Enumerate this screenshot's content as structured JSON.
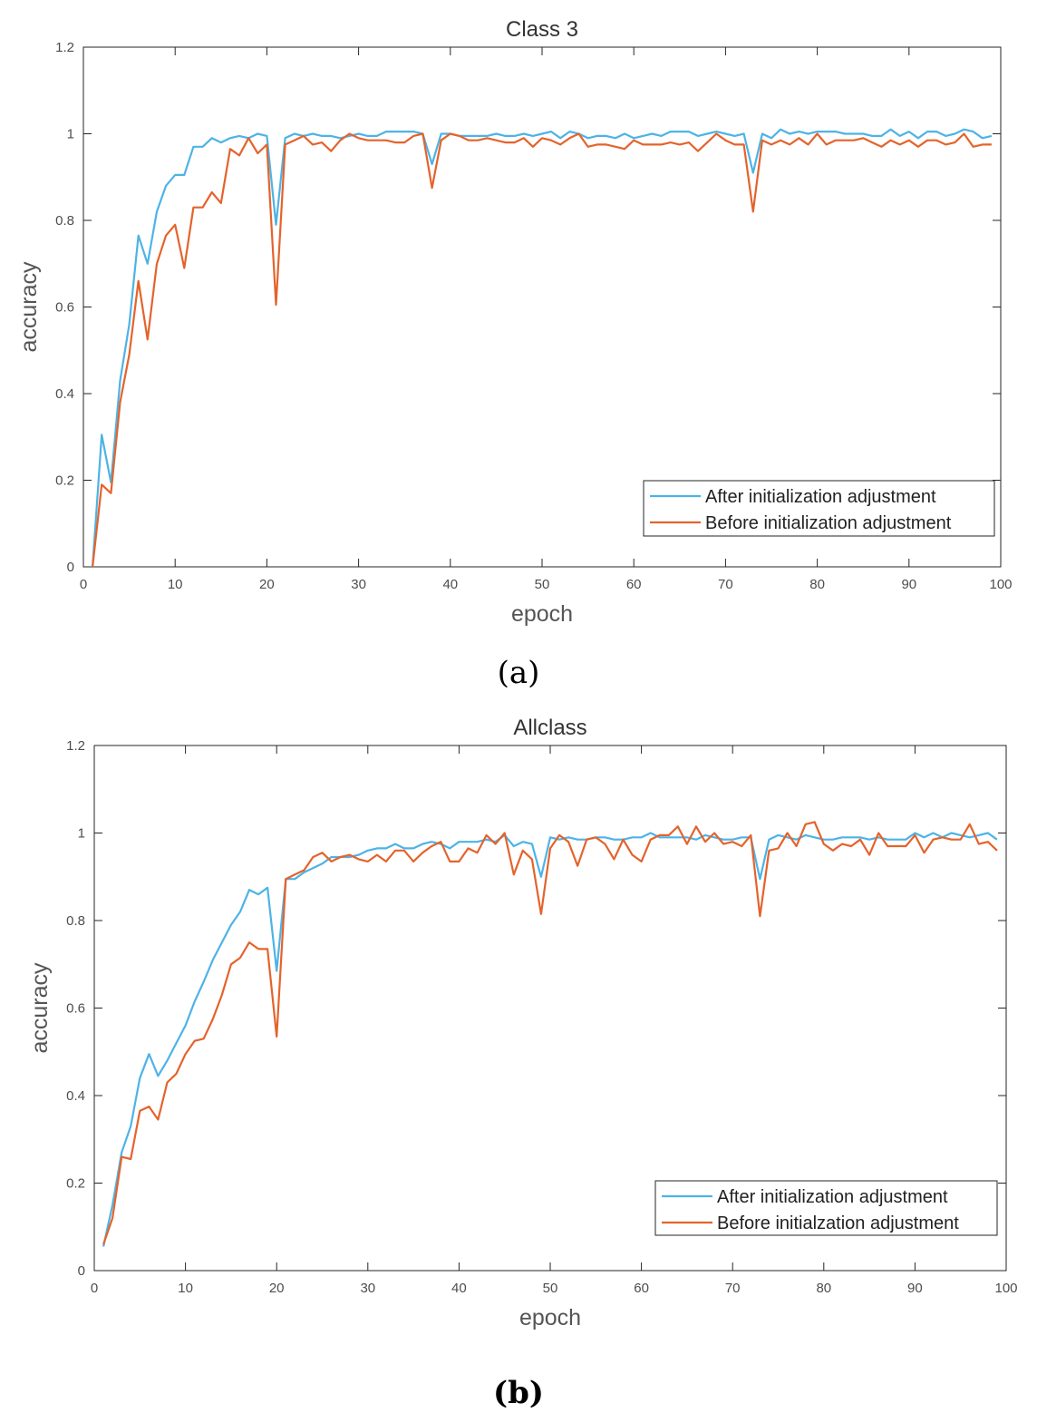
{
  "figure": {
    "caption_a": "(a)",
    "caption_b": "(b)"
  },
  "chart_data": [
    {
      "type": "line",
      "title": "Class 3",
      "xlabel": "epoch",
      "ylabel": "accuracy",
      "xlim": [
        0,
        100
      ],
      "ylim": [
        0,
        1.2
      ],
      "xticks": [
        "0",
        "10",
        "20",
        "30",
        "40",
        "50",
        "60",
        "70",
        "80",
        "90",
        "100"
      ],
      "yticks": [
        "0",
        "0.2",
        "0.4",
        "0.6",
        "0.8",
        "1",
        "1.2"
      ],
      "grid": false,
      "legend_position": "bottom-right",
      "x": [
        1,
        2,
        3,
        4,
        5,
        6,
        7,
        8,
        9,
        10,
        11,
        12,
        13,
        14,
        15,
        16,
        17,
        18,
        19,
        20,
        21,
        22,
        23,
        24,
        25,
        26,
        27,
        28,
        29,
        30,
        31,
        32,
        33,
        34,
        35,
        36,
        37,
        38,
        39,
        40,
        41,
        42,
        43,
        44,
        45,
        46,
        47,
        48,
        49,
        50,
        51,
        52,
        53,
        54,
        55,
        56,
        57,
        58,
        59,
        60,
        61,
        62,
        63,
        64,
        65,
        66,
        67,
        68,
        69,
        70,
        71,
        72,
        73,
        74,
        75,
        76,
        77,
        78,
        79,
        80,
        81,
        82,
        83,
        84,
        85,
        86,
        87,
        88,
        89,
        90,
        91,
        92,
        93,
        94,
        95,
        96,
        97,
        98,
        99
      ],
      "series": [
        {
          "name": "After initialization adjustment",
          "color": "#4DB3E6",
          "values": [
            0,
            0.305,
            0.195,
            0.43,
            0.56,
            0.765,
            0.7,
            0.82,
            0.88,
            0.905,
            0.905,
            0.97,
            0.97,
            0.99,
            0.98,
            0.99,
            0.995,
            0.99,
            1.0,
            0.995,
            0.79,
            0.99,
            1.0,
            0.995,
            1.0,
            0.995,
            0.995,
            0.99,
            0.995,
            1.0,
            0.995,
            0.995,
            1.005,
            1.005,
            1.005,
            1.005,
            1.0,
            0.93,
            1.0,
            1.0,
            0.995,
            0.995,
            0.995,
            0.995,
            1.0,
            0.995,
            0.995,
            1.0,
            0.995,
            1.0,
            1.005,
            0.99,
            1.005,
            1.0,
            0.99,
            0.995,
            0.995,
            0.99,
            1.0,
            0.99,
            0.995,
            1.0,
            0.995,
            1.005,
            1.005,
            1.005,
            0.995,
            1.0,
            1.005,
            1.0,
            0.995,
            1.0,
            0.91,
            1.0,
            0.99,
            1.01,
            1.0,
            1.005,
            1.0,
            1.005,
            1.005,
            1.005,
            1.0,
            1.0,
            1.0,
            0.995,
            0.995,
            1.01,
            0.995,
            1.005,
            0.99,
            1.005,
            1.005,
            0.995,
            1.0,
            1.01,
            1.005,
            0.99,
            0.995
          ]
        },
        {
          "name": "Before initialization adjustment",
          "color": "#E4632C",
          "values": [
            0,
            0.19,
            0.17,
            0.38,
            0.49,
            0.66,
            0.525,
            0.7,
            0.765,
            0.79,
            0.69,
            0.83,
            0.83,
            0.865,
            0.84,
            0.965,
            0.95,
            0.99,
            0.955,
            0.975,
            0.605,
            0.975,
            0.985,
            0.995,
            0.975,
            0.98,
            0.96,
            0.985,
            1.0,
            0.99,
            0.985,
            0.985,
            0.985,
            0.98,
            0.98,
            0.995,
            1.0,
            0.875,
            0.985,
            1.0,
            0.995,
            0.985,
            0.985,
            0.99,
            0.985,
            0.98,
            0.98,
            0.99,
            0.97,
            0.99,
            0.985,
            0.975,
            0.99,
            1.0,
            0.97,
            0.975,
            0.975,
            0.97,
            0.965,
            0.985,
            0.975,
            0.975,
            0.975,
            0.98,
            0.975,
            0.98,
            0.96,
            0.98,
            1.0,
            0.985,
            0.975,
            0.975,
            0.82,
            0.985,
            0.975,
            0.985,
            0.975,
            0.99,
            0.975,
            1.0,
            0.975,
            0.985,
            0.985,
            0.985,
            0.99,
            0.98,
            0.97,
            0.985,
            0.975,
            0.985,
            0.97,
            0.985,
            0.985,
            0.975,
            0.98,
            1.0,
            0.97,
            0.975,
            0.975
          ]
        }
      ]
    },
    {
      "type": "line",
      "title": "Allclass",
      "xlabel": "epoch",
      "ylabel": "accuracy",
      "xlim": [
        0,
        100
      ],
      "ylim": [
        0,
        1.2
      ],
      "xticks": [
        "0",
        "10",
        "20",
        "30",
        "40",
        "50",
        "60",
        "70",
        "80",
        "90",
        "100"
      ],
      "yticks": [
        "0",
        "0.2",
        "0.4",
        "0.6",
        "0.8",
        "1",
        "1.2"
      ],
      "grid": false,
      "legend_position": "bottom-right",
      "x": [
        1,
        2,
        3,
        4,
        5,
        6,
        7,
        8,
        9,
        10,
        11,
        12,
        13,
        14,
        15,
        16,
        17,
        18,
        19,
        20,
        21,
        22,
        23,
        24,
        25,
        26,
        27,
        28,
        29,
        30,
        31,
        32,
        33,
        34,
        35,
        36,
        37,
        38,
        39,
        40,
        41,
        42,
        43,
        44,
        45,
        46,
        47,
        48,
        49,
        50,
        51,
        52,
        53,
        54,
        55,
        56,
        57,
        58,
        59,
        60,
        61,
        62,
        63,
        64,
        65,
        66,
        67,
        68,
        69,
        70,
        71,
        72,
        73,
        74,
        75,
        76,
        77,
        78,
        79,
        80,
        81,
        82,
        83,
        84,
        85,
        86,
        87,
        88,
        89,
        90,
        91,
        92,
        93,
        94,
        95,
        96,
        97,
        98,
        99
      ],
      "series": [
        {
          "name": "After initialization adjustment",
          "color": "#4DB3E6",
          "values": [
            0.055,
            0.15,
            0.27,
            0.33,
            0.44,
            0.495,
            0.445,
            0.48,
            0.52,
            0.56,
            0.615,
            0.66,
            0.71,
            0.75,
            0.79,
            0.82,
            0.87,
            0.86,
            0.875,
            0.685,
            0.895,
            0.895,
            0.91,
            0.92,
            0.93,
            0.945,
            0.945,
            0.945,
            0.95,
            0.96,
            0.965,
            0.965,
            0.975,
            0.965,
            0.965,
            0.975,
            0.98,
            0.975,
            0.965,
            0.98,
            0.98,
            0.98,
            0.985,
            0.98,
            0.995,
            0.97,
            0.98,
            0.975,
            0.9,
            0.99,
            0.985,
            0.99,
            0.985,
            0.985,
            0.99,
            0.99,
            0.985,
            0.985,
            0.99,
            0.99,
            1.0,
            0.99,
            0.99,
            0.99,
            0.99,
            0.985,
            0.995,
            0.99,
            0.985,
            0.985,
            0.99,
            0.99,
            0.895,
            0.985,
            0.995,
            0.99,
            0.985,
            0.995,
            0.99,
            0.985,
            0.985,
            0.99,
            0.99,
            0.99,
            0.985,
            0.99,
            0.985,
            0.985,
            0.985,
            1.0,
            0.99,
            1.0,
            0.99,
            1.0,
            0.995,
            0.99,
            0.995,
            1.0,
            0.985
          ]
        },
        {
          "name": "Before initialzation adjustment",
          "color": "#E4632C",
          "values": [
            0.06,
            0.12,
            0.26,
            0.255,
            0.365,
            0.375,
            0.345,
            0.43,
            0.45,
            0.495,
            0.525,
            0.53,
            0.575,
            0.63,
            0.7,
            0.715,
            0.75,
            0.735,
            0.735,
            0.535,
            0.895,
            0.905,
            0.915,
            0.945,
            0.955,
            0.935,
            0.945,
            0.95,
            0.94,
            0.935,
            0.95,
            0.935,
            0.96,
            0.96,
            0.935,
            0.955,
            0.97,
            0.98,
            0.935,
            0.935,
            0.965,
            0.955,
            0.995,
            0.975,
            1.0,
            0.905,
            0.96,
            0.94,
            0.815,
            0.965,
            0.995,
            0.98,
            0.925,
            0.985,
            0.99,
            0.975,
            0.94,
            0.985,
            0.95,
            0.935,
            0.985,
            0.995,
            0.995,
            1.015,
            0.975,
            1.015,
            0.98,
            1.0,
            0.975,
            0.98,
            0.97,
            0.995,
            0.81,
            0.96,
            0.965,
            1.0,
            0.97,
            1.02,
            1.025,
            0.975,
            0.96,
            0.975,
            0.97,
            0.985,
            0.95,
            1.0,
            0.97,
            0.97,
            0.97,
            0.995,
            0.955,
            0.985,
            0.99,
            0.985,
            0.985,
            1.02,
            0.975,
            0.98,
            0.96
          ]
        }
      ]
    }
  ]
}
